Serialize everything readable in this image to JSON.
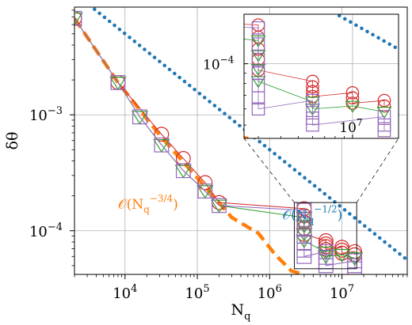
{
  "chart_data": {
    "type": "line",
    "xlabel": "N",
    "xlabel_sub": "q",
    "ylabel": "δθ",
    "xscale": "log",
    "yscale": "log",
    "xlim": [
      2000,
      80000000
    ],
    "ylim": [
      4.2e-05,
      0.0085
    ],
    "grid": true,
    "x_ticks": [
      {
        "value": 10000,
        "base": "10",
        "exp": "4"
      },
      {
        "value": 100000,
        "base": "10",
        "exp": "5"
      },
      {
        "value": 1000000,
        "base": "10",
        "exp": "6"
      },
      {
        "value": 10000000,
        "base": "10",
        "exp": "7"
      }
    ],
    "y_ticks": [
      {
        "value": 0.0001,
        "base": "10",
        "exp": "−4"
      },
      {
        "value": 0.001,
        "base": "10",
        "exp": "−3"
      }
    ],
    "annotations": [
      {
        "text": "𝒪(N",
        "sub": "q",
        "sup": "−1/2",
        "close": ")",
        "color": "#1f77b4",
        "x": 1500000,
        "y": 0.000125
      },
      {
        "text": "𝒪(N",
        "sub": "q",
        "sup": "−3/4",
        "close": ")",
        "color": "#ff7f0e",
        "x": 8000,
        "y": 0.000155
      }
    ],
    "reference_lines": [
      {
        "name": "O(Nq^-1/2)",
        "style": "dotted",
        "color": "#1f77b4",
        "x": [
          2000,
          80000000
        ],
        "y": [
          0.0112,
          5.59e-05
        ]
      },
      {
        "name": "O(Nq^-3/4)",
        "style": "dashed",
        "color": "#ff7f0e",
        "x": [
          2000,
          8000,
          32000,
          128000,
          300000,
          700000,
          1200000,
          2000000,
          3000000
        ],
        "y": [
          0.0068,
          0.0019,
          0.00064,
          0.00024,
          0.00013,
          9.5e-05,
          6.2e-05,
          4.5e-05,
          4.2e-05
        ]
      }
    ],
    "series": [
      {
        "color": "#d62728",
        "marker": "circle",
        "x": [
          2000,
          8000,
          32000,
          64000,
          128000,
          200000,
          3000000,
          3000000,
          3000000,
          3000000,
          3000000,
          6000000,
          6000000,
          6000000,
          6000000,
          10000000,
          10000000,
          10000000,
          15000000,
          15000000
        ],
        "y": [
          0.0068,
          0.0019,
          0.00068,
          0.00042,
          0.00026,
          0.000175,
          0.000155,
          0.000135,
          0.000118,
          0.000105,
          9.3e-05,
          8.2e-05,
          7.7e-05,
          7.3e-05,
          6.9e-05,
          7.2e-05,
          6.8e-05,
          6.4e-05,
          6.6e-05,
          6.2e-05
        ]
      },
      {
        "color": "#2ca02c",
        "marker": "triangle-down",
        "x": [
          2000,
          8000,
          16000,
          32000,
          64000,
          128000,
          200000,
          3000000,
          3000000,
          3000000,
          3000000,
          6000000,
          6000000,
          10000000,
          15000000
        ],
        "y": [
          0.0068,
          0.0019,
          0.00096,
          0.00055,
          0.00033,
          0.00022,
          0.000165,
          0.00013,
          0.00011,
          9.4e-05,
          8.2e-05,
          6.5e-05,
          6e-05,
          6.2e-05,
          5.8e-05
        ]
      },
      {
        "color": "#9467bd",
        "marker": "square",
        "x": [
          2000,
          8000,
          16000,
          32000,
          64000,
          128000,
          200000,
          3000000,
          3000000,
          3000000,
          3000000,
          3000000,
          3000000,
          3000000,
          6000000,
          6000000,
          6000000,
          6000000,
          15000000,
          15000000,
          15000000
        ],
        "y": [
          0.0068,
          0.0019,
          0.00096,
          0.00055,
          0.00033,
          0.00022,
          0.000165,
          0.00015,
          0.000125,
          0.000105,
          9e-05,
          7.8e-05,
          6.8e-05,
          6e-05,
          6.6e-05,
          5.9e-05,
          5.4e-05,
          5e-05,
          5.5e-05,
          5e-05,
          4.7e-05
        ]
      }
    ],
    "inset": {
      "xlim": [
        2500000,
        18000000
      ],
      "ylim": [
        4.3e-05,
        0.000175
      ],
      "x_ticks": [
        {
          "value": 10000000,
          "base": "10",
          "exp": "7"
        }
      ],
      "y_ticks": [
        {
          "value": 0.0001,
          "base": "10",
          "exp": "−4"
        }
      ],
      "zoom_box": {
        "x": [
          2200000,
          16000000
        ],
        "y": [
          4.7e-05,
          0.000175
        ]
      }
    }
  }
}
